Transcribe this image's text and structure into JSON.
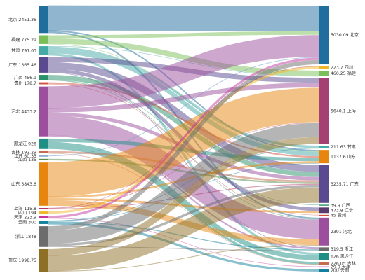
{
  "chart_data": {
    "type": "sankey",
    "sources": [
      {
        "id": "src-beijing",
        "name": "北京",
        "value": 2451.36,
        "color": "#1f6e9e"
      },
      {
        "id": "src-fujian",
        "name": "福建",
        "value": 775.29,
        "color": "#7cbf5a"
      },
      {
        "id": "src-gansu",
        "name": "甘肃",
        "value": 791.63,
        "color": "#43aaa6"
      },
      {
        "id": "src-guangdong",
        "name": "广东",
        "value": 1365.46,
        "color": "#5a4a8f"
      },
      {
        "id": "src-guangxi",
        "name": "广西",
        "value": 456.9,
        "color": "#29916a"
      },
      {
        "id": "src-guizhou",
        "name": "贵州",
        "value": 178.7,
        "color": "#d4503d"
      },
      {
        "id": "src-hebei",
        "name": "河北",
        "value": 4433.2,
        "color": "#9c4f9c"
      },
      {
        "id": "src-heilongjiang",
        "name": "黑龙江",
        "value": 926,
        "color": "#1f8f86"
      },
      {
        "id": "src-jilin",
        "name": "吉林",
        "value": 192.29,
        "color": "#c66c4d"
      },
      {
        "id": "src-jiangsu",
        "name": "江苏",
        "value": 60.35,
        "color": "#6d98c4"
      },
      {
        "id": "src-jiangxi",
        "name": "江西",
        "value": 135,
        "color": "#5a8e4a"
      },
      {
        "id": "src-shandong",
        "name": "山东",
        "value": 3843.6,
        "color": "#e8850e"
      },
      {
        "id": "src-shanghai",
        "name": "上海",
        "value": 115.8,
        "color": "#b33660"
      },
      {
        "id": "src-sichuan",
        "name": "四川",
        "value": 194,
        "color": "#f2b729"
      },
      {
        "id": "src-tianjin",
        "name": "天津",
        "value": 223.9,
        "color": "#c4369d"
      },
      {
        "id": "src-yunnan",
        "name": "云南",
        "value": 300,
        "color": "#13829e"
      },
      {
        "id": "src-zhejiang",
        "name": "浙江",
        "value": 1848,
        "color": "#6c6c6c"
      },
      {
        "id": "src-chongqing",
        "name": "重庆",
        "value": 1998.75,
        "color": "#8d7025"
      }
    ],
    "targets": [
      {
        "id": "tgt-beijing",
        "name": "北京",
        "value": 5030.09,
        "color": "#1f6e9e"
      },
      {
        "id": "tgt-sichuan",
        "name": "四川",
        "value": 223.7,
        "color": "#f2b729"
      },
      {
        "id": "tgt-fujian",
        "name": "福建",
        "value": 460.25,
        "color": "#7cbf5a"
      },
      {
        "id": "tgt-shanghai",
        "name": "上海",
        "value": 5640.1,
        "color": "#a63f72"
      },
      {
        "id": "tgt-gansu",
        "name": "甘肃",
        "value": 211.63,
        "color": "#43aaa6"
      },
      {
        "id": "tgt-shandong",
        "name": "山东",
        "value": 1137.6,
        "color": "#e8850e"
      },
      {
        "id": "tgt-guangdong",
        "name": "广东",
        "value": 3235.71,
        "color": "#5a4a8f"
      },
      {
        "id": "tgt-guangxi",
        "name": "广西",
        "value": 39.9,
        "color": "#29916a"
      },
      {
        "id": "tgt-liaoning",
        "name": "辽宁",
        "value": 473.8,
        "color": "#5a3a6f"
      },
      {
        "id": "tgt-guizhou",
        "name": "贵州",
        "value": 45,
        "color": "#d4503d"
      },
      {
        "id": "tgt-hebei",
        "name": "河北",
        "value": 2391,
        "color": "#9c4f9c"
      },
      {
        "id": "tgt-zhejiang",
        "name": "浙江",
        "value": 319.5,
        "color": "#6c6c6c"
      },
      {
        "id": "tgt-heilongjiang",
        "name": "黑龙江",
        "value": 626,
        "color": "#1f8f86"
      },
      {
        "id": "tgt-jilin",
        "name": "吉林",
        "value": 226.05,
        "color": "#c66c4d"
      },
      {
        "id": "tgt-tianjin",
        "name": "天津",
        "value": 29.9,
        "color": "#c4369d"
      },
      {
        "id": "tgt-yunnan",
        "name": "云南",
        "value": 200,
        "color": "#13829e"
      }
    ],
    "links": [
      {
        "source": "src-beijing",
        "target": "tgt-beijing",
        "value": 2200
      },
      {
        "source": "src-beijing",
        "target": "tgt-shandong",
        "value": 120
      },
      {
        "source": "src-beijing",
        "target": "tgt-hebei",
        "value": 131.36
      },
      {
        "source": "src-fujian",
        "target": "tgt-beijing",
        "value": 300
      },
      {
        "source": "src-fujian",
        "target": "tgt-fujian",
        "value": 460.25
      },
      {
        "source": "src-fujian",
        "target": "tgt-shandong",
        "value": 15.04
      },
      {
        "source": "src-gansu",
        "target": "tgt-fujian",
        "value": 0
      },
      {
        "source": "src-gansu",
        "target": "tgt-gansu",
        "value": 211.63
      },
      {
        "source": "src-gansu",
        "target": "tgt-shandong",
        "value": 380
      },
      {
        "source": "src-gansu",
        "target": "tgt-heilongjiang",
        "value": 200
      },
      {
        "source": "src-guangdong",
        "target": "tgt-shanghai",
        "value": 420
      },
      {
        "source": "src-guangdong",
        "target": "tgt-guangdong",
        "value": 600
      },
      {
        "source": "src-guangdong",
        "target": "tgt-liaoning",
        "value": 300
      },
      {
        "source": "src-guangdong",
        "target": "tgt-zhejiang",
        "value": 45.46
      },
      {
        "source": "src-guangxi",
        "target": "tgt-guangdong",
        "value": 416
      },
      {
        "source": "src-guangxi",
        "target": "tgt-guangxi",
        "value": 39.9
      },
      {
        "source": "src-guangxi",
        "target": "tgt-hebei",
        "value": 1
      },
      {
        "source": "src-guizhou",
        "target": "tgt-shandong",
        "value": 133.7
      },
      {
        "source": "src-guizhou",
        "target": "tgt-guizhou",
        "value": 45
      },
      {
        "source": "src-hebei",
        "target": "tgt-beijing",
        "value": 1900
      },
      {
        "source": "src-hebei",
        "target": "tgt-shanghai",
        "value": 400
      },
      {
        "source": "src-hebei",
        "target": "tgt-guangdong",
        "value": 300
      },
      {
        "source": "src-hebei",
        "target": "tgt-hebei",
        "value": 1700
      },
      {
        "source": "src-hebei",
        "target": "tgt-zhejiang",
        "value": 133.2
      },
      {
        "source": "src-heilongjiang",
        "target": "tgt-shandong",
        "value": 300
      },
      {
        "source": "src-heilongjiang",
        "target": "tgt-heilongjiang",
        "value": 426
      },
      {
        "source": "src-heilongjiang",
        "target": "tgt-jilin",
        "value": 200
      },
      {
        "source": "src-jilin",
        "target": "tgt-guangdong",
        "value": 166.24
      },
      {
        "source": "src-jilin",
        "target": "tgt-jilin",
        "value": 26.05
      },
      {
        "source": "src-jiangsu",
        "target": "tgt-beijing",
        "value": 60.35
      },
      {
        "source": "src-jiangxi",
        "target": "tgt-guangdong",
        "value": 135
      },
      {
        "source": "src-shandong",
        "target": "tgt-shanghai",
        "value": 3000
      },
      {
        "source": "src-shandong",
        "target": "tgt-hebei",
        "value": 500
      },
      {
        "source": "src-shandong",
        "target": "tgt-liaoning",
        "value": 173.8
      },
      {
        "source": "src-shandong",
        "target": "tgt-shandong",
        "value": 169.8
      },
      {
        "source": "src-shanghai",
        "target": "tgt-shanghai",
        "value": 20.1
      },
      {
        "source": "src-shanghai",
        "target": "tgt-sichuan",
        "value": 29.7
      },
      {
        "source": "src-shanghai",
        "target": "tgt-guangdong",
        "value": 66
      },
      {
        "source": "src-sichuan",
        "target": "tgt-sichuan",
        "value": 194
      },
      {
        "source": "src-tianjin",
        "target": "tgt-beijing",
        "value": 194
      },
      {
        "source": "src-tianjin",
        "target": "tgt-tianjin",
        "value": 29.9
      },
      {
        "source": "src-yunnan",
        "target": "tgt-gansu",
        "value": 0
      },
      {
        "source": "src-yunnan",
        "target": "tgt-shandong",
        "value": 19.06
      },
      {
        "source": "src-yunnan",
        "target": "tgt-zhejiang",
        "value": 80.94
      },
      {
        "source": "src-yunnan",
        "target": "tgt-yunnan",
        "value": 200
      },
      {
        "source": "src-zhejiang",
        "target": "tgt-beijing",
        "value": 375.74
      },
      {
        "source": "src-zhejiang",
        "target": "tgt-shanghai",
        "value": 1200
      },
      {
        "source": "src-zhejiang",
        "target": "tgt-guangdong",
        "value": 212.26
      },
      {
        "source": "src-zhejiang",
        "target": "tgt-zhejiang",
        "value": 60
      },
      {
        "source": "src-chongqing",
        "target": "tgt-shanghai",
        "value": 600
      },
      {
        "source": "src-chongqing",
        "target": "tgt-guangdong",
        "value": 1340.21
      },
      {
        "source": "src-chongqing",
        "target": "tgt-hebei",
        "value": 58.54
      }
    ]
  }
}
